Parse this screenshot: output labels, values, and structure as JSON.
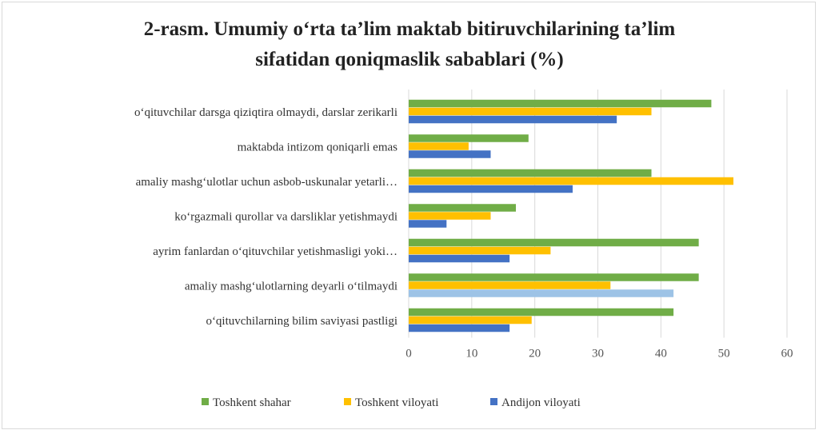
{
  "chart_data": {
    "type": "bar",
    "orientation": "horizontal",
    "title_lines": [
      "2-rasm. Umumiy o‘rta ta’lim maktab bitiruvchilarining ta’lim",
      "sifatidan qoniqmaslik sabablari (%)"
    ],
    "xlabel": "",
    "ylabel": "",
    "xlim": [
      0,
      60
    ],
    "xticks": [
      "0",
      "10",
      "20",
      "30",
      "40",
      "50",
      "60"
    ],
    "grid": "vertical",
    "legend_position": "bottom",
    "categories": [
      "o‘qituvchilar darsga qiziqtira olmaydi, darslar zerikarli",
      "maktabda intizom qoniqarli emas",
      "amaliy mashg‘ulotlar uchun asbob-uskunalar yetarli…",
      "ko‘rgazmali qurollar va darsliklar yetishmaydi",
      "ayrim fanlardan o‘qituvchilar yetishmasligi yoki…",
      "amaliy mashg‘ulotlarning deyarli o‘tilmaydi",
      "o‘qituvchilarning bilim saviyasi pastligi"
    ],
    "series": [
      {
        "name": "Toshkent shahar",
        "color": "#70ad47",
        "values": [
          48,
          19,
          38.5,
          17,
          46,
          46,
          42
        ]
      },
      {
        "name": "Toshkent viloyati",
        "color": "#ffc000",
        "values": [
          38.5,
          9.5,
          51.5,
          13,
          22.5,
          32,
          19.5
        ]
      },
      {
        "name": "Andijon viloyati",
        "color": "#4472c4",
        "values": [
          33,
          13,
          26,
          6,
          16,
          42,
          16
        ]
      }
    ],
    "highlight": {
      "category_index": 5,
      "series_index": 2,
      "color": "#9dc3e6"
    }
  }
}
